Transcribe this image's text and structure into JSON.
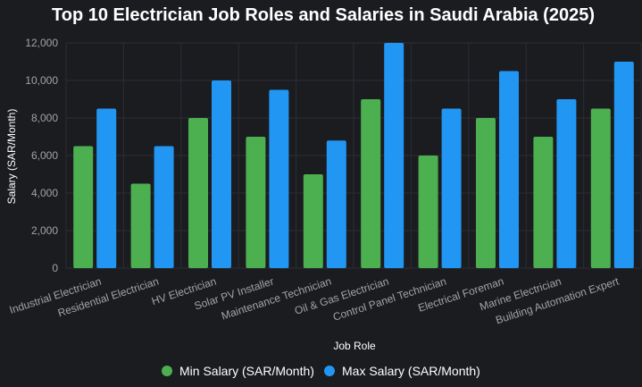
{
  "chart_data": {
    "type": "bar",
    "title": "Top 10 Electrician Job Roles and Salaries in Saudi Arabia (2025)",
    "xlabel": "Job Role",
    "ylabel": "Salary (SAR/Month)",
    "ylim": [
      0,
      12000
    ],
    "yticks": [
      "0",
      "2,000",
      "4,000",
      "6,000",
      "8,000",
      "10,000",
      "12,000"
    ],
    "grid": true,
    "legend_position": "bottom",
    "categories": [
      "Industrial Electrician",
      "Residential Electrician",
      "HV Electrician",
      "Solar PV Installer",
      "Maintenance Technician",
      "Oil & Gas Electrician",
      "Control Panel Technician",
      "Electrical Foreman",
      "Marine Electrician",
      "Building Automation Expert"
    ],
    "series": [
      {
        "name": "Min Salary (SAR/Month)",
        "color": "#4caf50",
        "values": [
          6500,
          4500,
          8000,
          7000,
          5000,
          9000,
          6000,
          8000,
          7000,
          8500
        ]
      },
      {
        "name": "Max Salary (SAR/Month)",
        "color": "#2196f3",
        "values": [
          8500,
          6500,
          10000,
          9500,
          6800,
          12000,
          8500,
          10500,
          9000,
          11000
        ]
      }
    ]
  }
}
